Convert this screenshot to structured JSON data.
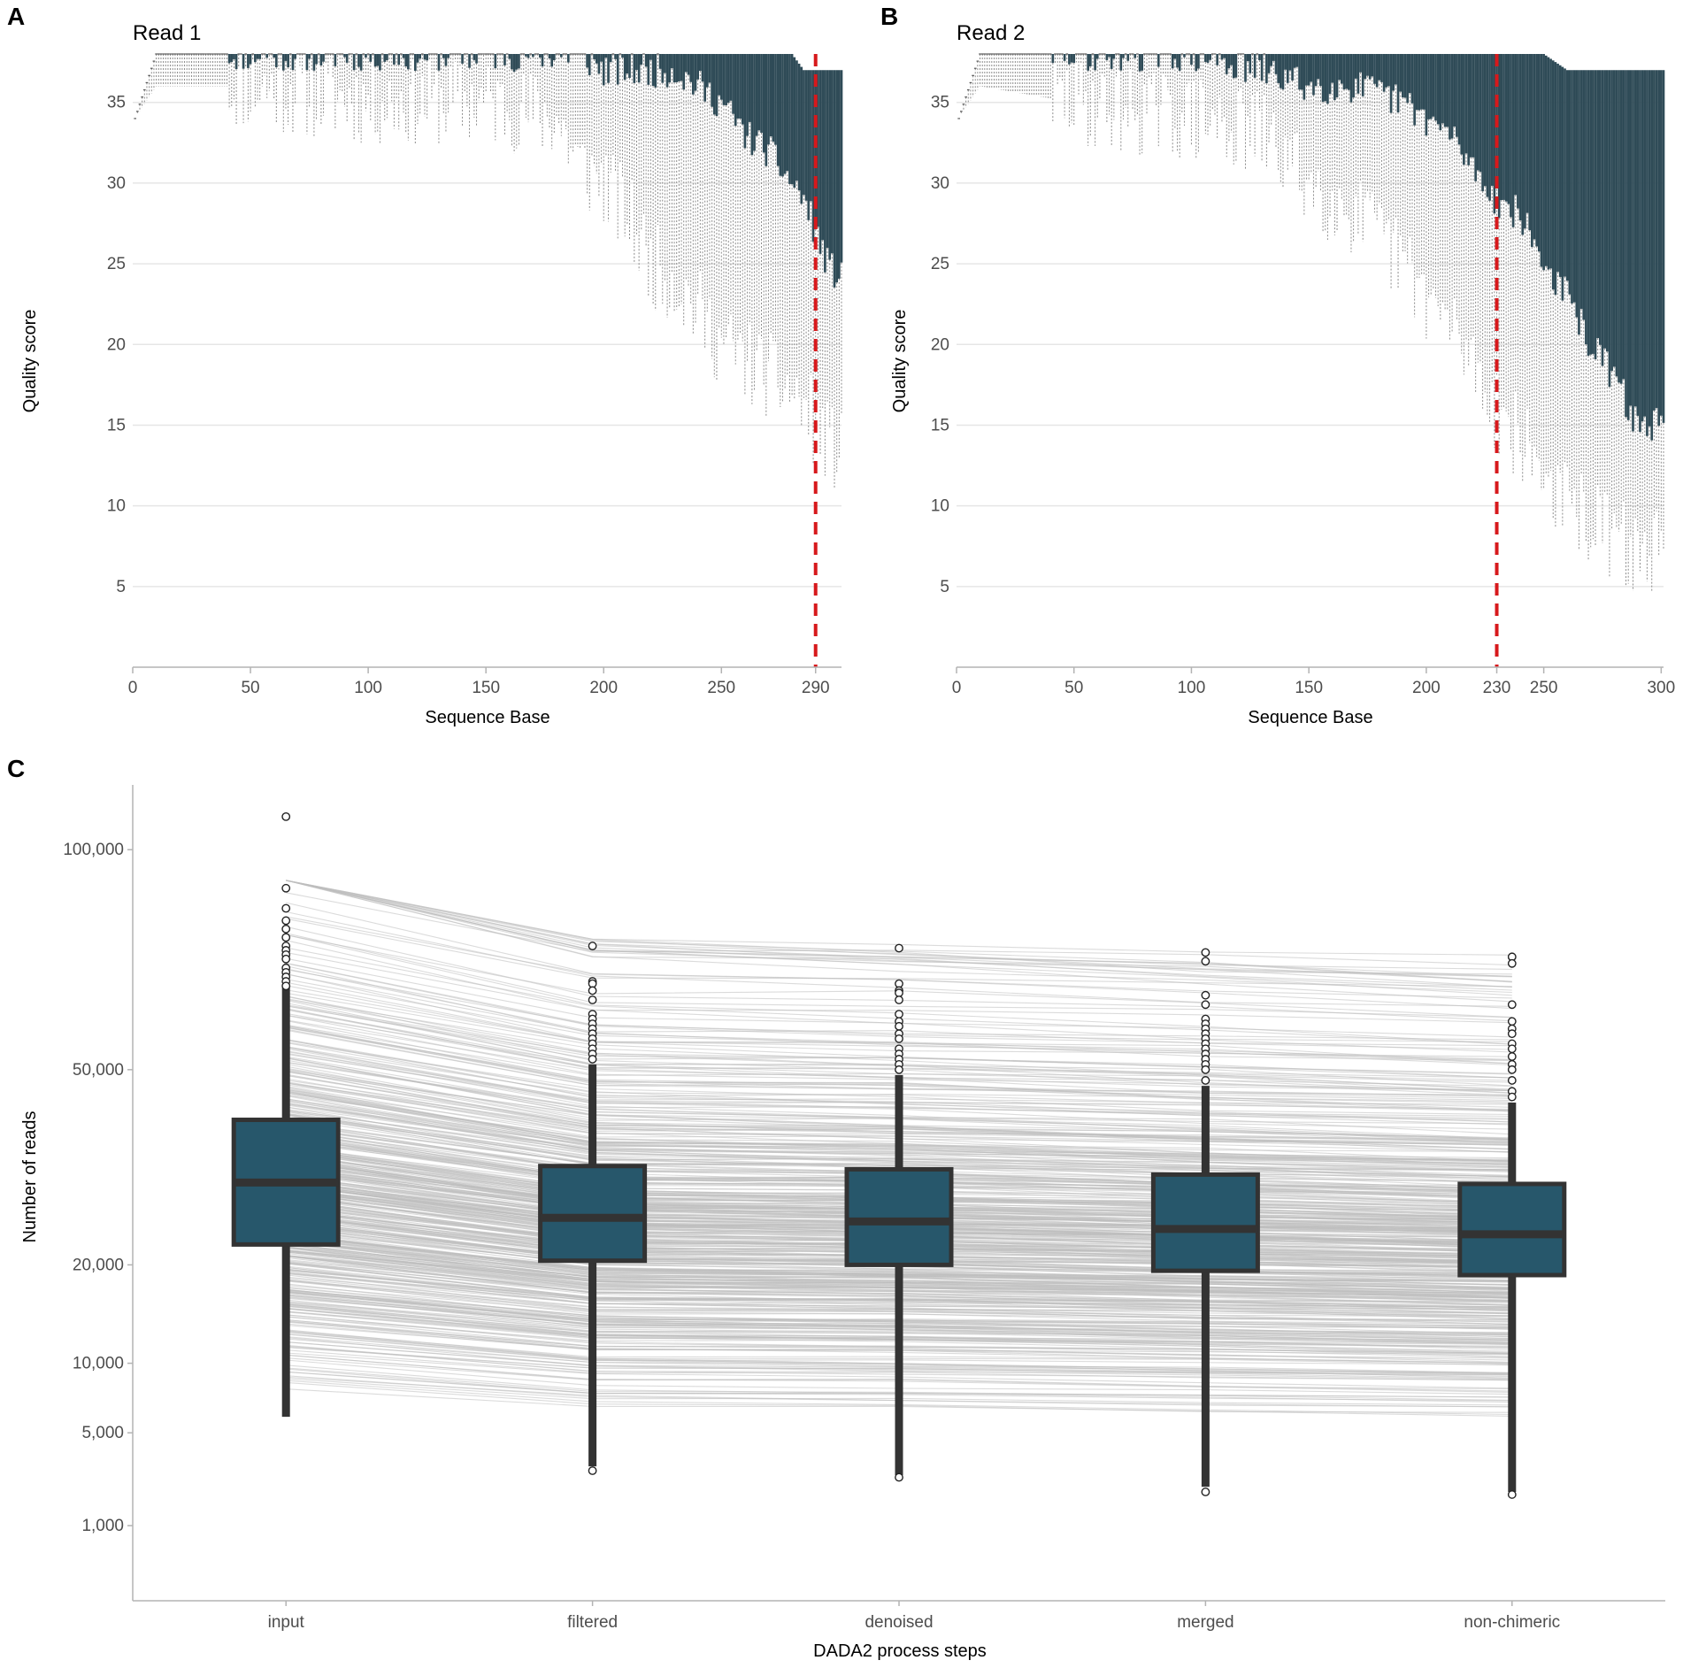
{
  "chart_data": [
    {
      "type": "box",
      "panel": "A",
      "title": "Read 1",
      "xlabel": "Sequence Base",
      "ylabel": "Quality score",
      "xlim": [
        0,
        301
      ],
      "ylim": [
        0,
        38
      ],
      "xticks": [
        0,
        50,
        100,
        150,
        200,
        250,
        290
      ],
      "yticks": [
        5,
        10,
        15,
        20,
        25,
        30,
        35
      ],
      "cutoff": 290,
      "box_color": "#2f4b57",
      "whisker_color": "#8c8c8c",
      "cutoff_color": "#d7191c",
      "quality_profile": {
        "positions": [
          1,
          10,
          50,
          100,
          150,
          180,
          190,
          200,
          210,
          220,
          230,
          240,
          250,
          260,
          270,
          280,
          285,
          290,
          295,
          301
        ],
        "median": [
          34,
          38,
          38,
          38,
          38,
          38,
          38,
          38,
          38,
          38,
          38,
          38,
          38,
          38,
          38,
          37,
          37,
          37,
          37,
          37
        ],
        "q25": [
          34,
          38,
          38,
          38,
          38,
          38,
          38,
          37,
          37,
          37,
          37,
          36,
          35,
          33,
          32,
          30,
          29,
          27,
          25,
          24
        ],
        "q75": [
          34,
          38,
          38,
          38,
          38,
          38,
          38,
          38,
          38,
          38,
          38,
          38,
          38,
          38,
          38,
          38,
          37,
          37,
          37,
          37
        ],
        "whisker_low": [
          34,
          36,
          36,
          35,
          35,
          34,
          31,
          30,
          28,
          25,
          24,
          22,
          20,
          19,
          18,
          17,
          16,
          15,
          14,
          13
        ]
      }
    },
    {
      "type": "box",
      "panel": "B",
      "title": "Read 2",
      "xlabel": "Sequence Base",
      "ylabel": "Quality score",
      "xlim": [
        0,
        301
      ],
      "ylim": [
        0,
        38
      ],
      "xticks": [
        0,
        50,
        100,
        150,
        200,
        230,
        250,
        300
      ],
      "yticks": [
        5,
        10,
        15,
        20,
        25,
        30,
        35
      ],
      "cutoff": 230,
      "box_color": "#2f4b57",
      "whisker_color": "#8c8c8c",
      "cutoff_color": "#d7191c",
      "quality_profile": {
        "positions": [
          1,
          10,
          50,
          100,
          130,
          150,
          170,
          190,
          200,
          210,
          220,
          230,
          240,
          250,
          260,
          270,
          280,
          290,
          300
        ],
        "median": [
          34,
          38,
          38,
          38,
          38,
          38,
          38,
          38,
          38,
          37,
          37,
          37,
          37,
          37,
          37,
          37,
          37,
          35,
          35
        ],
        "q25": [
          34,
          38,
          38,
          38,
          37,
          36,
          36,
          35,
          34,
          33,
          31,
          29,
          28,
          25,
          23,
          20,
          18,
          15,
          15
        ],
        "q75": [
          34,
          38,
          38,
          38,
          38,
          38,
          38,
          38,
          38,
          38,
          38,
          38,
          38,
          38,
          37,
          37,
          37,
          37,
          37
        ],
        "whisker_low": [
          34,
          36,
          35,
          34,
          33,
          30,
          28,
          25,
          23,
          21,
          19,
          16,
          14,
          12,
          10,
          9,
          8,
          7,
          7
        ]
      }
    },
    {
      "type": "box",
      "panel": "C",
      "xlabel": "DADA2 process steps",
      "ylabel": "Number of reads",
      "categories": [
        "input",
        "filtered",
        "denoised",
        "merged",
        "non-chimeric"
      ],
      "ytick_values": [
        1000,
        5000,
        10000,
        20000,
        50000,
        100000
      ],
      "ytick_labels": [
        "1,000",
        "5,000",
        "10,000",
        "20,000",
        "50,000",
        "100,000"
      ],
      "yscale": "sqrt",
      "ylim": [
        0,
        118000
      ],
      "box_color": "#27576b",
      "line_color": "#bdbdbd",
      "boxes": [
        {
          "category": "input",
          "q1": 22500,
          "median": 31000,
          "q3": 41000,
          "min": 6000,
          "max": 67000
        },
        {
          "category": "filtered",
          "q1": 20500,
          "median": 26000,
          "q3": 33500,
          "min": 3200,
          "max": 51000
        },
        {
          "category": "denoised",
          "q1": 20000,
          "median": 25500,
          "q3": 33000,
          "min": 2800,
          "max": 49000
        },
        {
          "category": "merged",
          "q1": 19300,
          "median": 24500,
          "q3": 32200,
          "min": 2300,
          "max": 47000
        },
        {
          "category": "non-chimeric",
          "q1": 18800,
          "median": 23800,
          "q3": 30800,
          "min": 2100,
          "max": 44000
        }
      ],
      "outliers": {
        "input": [
          109000,
          90000,
          85000,
          82000,
          80000,
          78000,
          76000,
          75000,
          74000,
          73000,
          71000,
          70000,
          69000,
          68000,
          67000
        ],
        "filtered": [
          76000,
          68000,
          67500,
          66000,
          64000,
          61000,
          60000,
          59000,
          58000,
          57000,
          56000,
          55000,
          54000,
          53000,
          52000,
          3000
        ],
        "denoised": [
          75500,
          67500,
          66000,
          65500,
          64000,
          61000,
          59500,
          58500,
          57000,
          56000,
          54000,
          53000,
          52000,
          51000,
          50000,
          2700
        ],
        "merged": [
          74500,
          72500,
          65000,
          63000,
          60000,
          59000,
          58000,
          57000,
          56000,
          55000,
          54000,
          53000,
          52000,
          51000,
          50000,
          48000,
          2100
        ],
        "non-chimeric": [
          73500,
          72000,
          63000,
          59500,
          58000,
          57000,
          55000,
          54000,
          52500,
          51000,
          50000,
          48000,
          46000,
          45000,
          2000
        ]
      }
    }
  ]
}
